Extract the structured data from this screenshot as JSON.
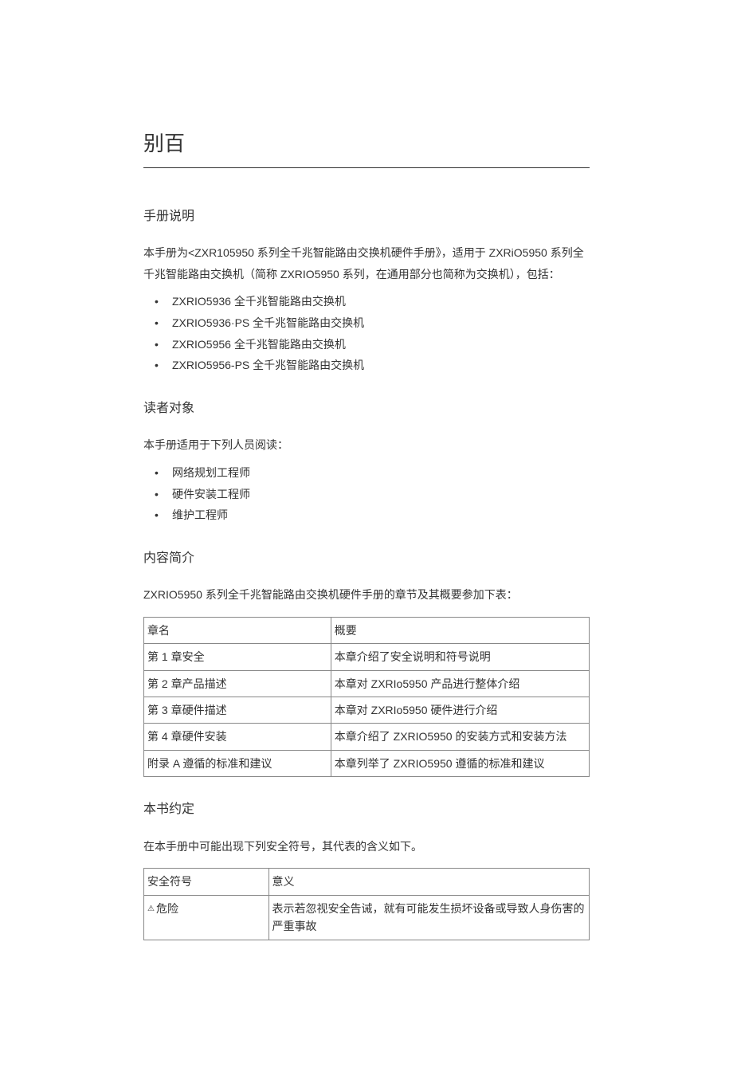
{
  "page_title": "别百",
  "sections": {
    "manual_desc": {
      "heading": "手册说明",
      "intro": "本手册为<ZXR105950 系列全千兆智能路由交换机硬件手册》，适用于 ZXRiO5950 系列全千兆智能路由交换机（简称 ZXRIO5950 系列，在通用部分也简称为交换机），包括：",
      "items": [
        "ZXRIO5936 全千兆智能路由交换机",
        "ZXRIO5936·PS 全千兆智能路由交换机",
        "ZXRIO5956 全千兆智能路由交换机",
        "ZXRIO5956-PS 全千兆智能路由交换机"
      ]
    },
    "audience": {
      "heading": "读者对象",
      "intro": "本手册适用于下列人员阅读：",
      "items": [
        "网络规划工程师",
        "硬件安装工程师",
        "维护工程师"
      ]
    },
    "content_brief": {
      "heading": "内容简介",
      "intro": "ZXRIO5950 系列全千兆智能路由交换机硬件手册的章节及其概要参加下表：",
      "table": {
        "columns": [
          "章名",
          "概要"
        ],
        "rows": [
          [
            "第 1 章安全",
            "本章介绍了安全说明和符号说明"
          ],
          [
            "第 2 章产品描述",
            "本章对 ZXRIo5950 产品进行整体介绍"
          ],
          [
            "第 3 章硬件描述",
            "本章对 ZXRIo5950 硬件进行介绍"
          ],
          [
            "第 4 章硬件安装",
            "本章介绍了 ZXRIO5950 的安装方式和安装方法"
          ],
          [
            "附录 A 遵循的标准和建议",
            "本章列举了 ZXRIO5950 遵循的标准和建议"
          ]
        ]
      }
    },
    "conventions": {
      "heading": "本书约定",
      "intro": "在本手册中可能出现下列安全符号，其代表的含义如下。",
      "table": {
        "columns": [
          "安全符号",
          "意义"
        ],
        "rows": [
          [
            "危险",
            "表示若忽视安全告诫，就有可能发生损坏设备或导致人身伤害的严重事故"
          ]
        ]
      }
    }
  },
  "colors": {
    "text": "#333333",
    "border": "#888888",
    "title_rule": "#333333",
    "background": "#ffffff"
  },
  "typography": {
    "title_fontsize": 26,
    "heading_fontsize": 16,
    "body_fontsize": 14,
    "font_family": "Microsoft YaHei"
  }
}
